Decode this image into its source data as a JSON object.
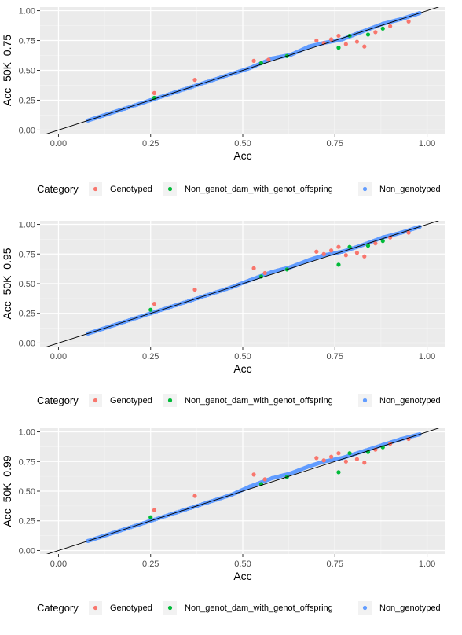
{
  "legend": {
    "title": "Category",
    "items": [
      {
        "label": "Genotyped",
        "color": "#F8766D"
      },
      {
        "label": "Non_genot_dam_with_genot_offspring",
        "color": "#00BA38"
      },
      {
        "label": "Non_genotyped",
        "color": "#619CFF"
      }
    ]
  },
  "chart_data": [
    {
      "type": "scatter",
      "xlabel": "Acc",
      "ylabel": "Acc_50K_0.75",
      "xlim": [
        -0.05,
        1.05
      ],
      "ylim": [
        -0.03,
        1.03
      ],
      "xticks": [
        "0.00",
        "0.25",
        "0.50",
        "0.75",
        "1.00"
      ],
      "yticks": [
        "0.00",
        "0.25",
        "0.50",
        "0.75",
        "1.00"
      ],
      "reference_line": {
        "slope": 1,
        "intercept": 0
      },
      "series": [
        {
          "name": "Non_genotyped",
          "points": [
            [
              0.08,
              0.08
            ],
            [
              0.12,
              0.12
            ],
            [
              0.18,
              0.18
            ],
            [
              0.25,
              0.25
            ],
            [
              0.32,
              0.32
            ],
            [
              0.4,
              0.4
            ],
            [
              0.47,
              0.47
            ],
            [
              0.52,
              0.52
            ],
            [
              0.58,
              0.6
            ],
            [
              0.63,
              0.63
            ],
            [
              0.68,
              0.7
            ],
            [
              0.72,
              0.73
            ],
            [
              0.77,
              0.76
            ],
            [
              0.82,
              0.82
            ],
            [
              0.88,
              0.89
            ],
            [
              0.93,
              0.93
            ],
            [
              0.98,
              0.98
            ]
          ]
        },
        {
          "name": "Genotyped",
          "points": [
            [
              0.26,
              0.31
            ],
            [
              0.37,
              0.42
            ],
            [
              0.53,
              0.58
            ],
            [
              0.57,
              0.59
            ],
            [
              0.7,
              0.75
            ],
            [
              0.72,
              0.73
            ],
            [
              0.74,
              0.76
            ],
            [
              0.76,
              0.79
            ],
            [
              0.78,
              0.72
            ],
            [
              0.81,
              0.74
            ],
            [
              0.83,
              0.7
            ],
            [
              0.86,
              0.82
            ],
            [
              0.9,
              0.87
            ],
            [
              0.95,
              0.91
            ]
          ]
        },
        {
          "name": "Non_genot_dam_with_genot_offspring",
          "points": [
            [
              0.26,
              0.27
            ],
            [
              0.55,
              0.56
            ],
            [
              0.62,
              0.62
            ],
            [
              0.76,
              0.69
            ],
            [
              0.79,
              0.79
            ],
            [
              0.84,
              0.8
            ],
            [
              0.88,
              0.85
            ]
          ]
        }
      ]
    },
    {
      "type": "scatter",
      "xlabel": "Acc",
      "ylabel": "Acc_50K_0.95",
      "xlim": [
        -0.05,
        1.05
      ],
      "ylim": [
        -0.03,
        1.03
      ],
      "xticks": [
        "0.00",
        "0.25",
        "0.50",
        "0.75",
        "1.00"
      ],
      "yticks": [
        "0.00",
        "0.25",
        "0.50",
        "0.75",
        "1.00"
      ],
      "reference_line": {
        "slope": 1,
        "intercept": 0
      },
      "series": [
        {
          "name": "Non_genotyped",
          "points": [
            [
              0.08,
              0.08
            ],
            [
              0.12,
              0.12
            ],
            [
              0.18,
              0.18
            ],
            [
              0.25,
              0.25
            ],
            [
              0.32,
              0.32
            ],
            [
              0.4,
              0.4
            ],
            [
              0.47,
              0.47
            ],
            [
              0.52,
              0.53
            ],
            [
              0.58,
              0.6
            ],
            [
              0.63,
              0.64
            ],
            [
              0.68,
              0.7
            ],
            [
              0.72,
              0.74
            ],
            [
              0.77,
              0.77
            ],
            [
              0.82,
              0.82
            ],
            [
              0.88,
              0.89
            ],
            [
              0.93,
              0.93
            ],
            [
              0.98,
              0.98
            ]
          ]
        },
        {
          "name": "Genotyped",
          "points": [
            [
              0.26,
              0.33
            ],
            [
              0.37,
              0.45
            ],
            [
              0.53,
              0.63
            ],
            [
              0.56,
              0.59
            ],
            [
              0.7,
              0.77
            ],
            [
              0.72,
              0.75
            ],
            [
              0.74,
              0.78
            ],
            [
              0.76,
              0.81
            ],
            [
              0.78,
              0.74
            ],
            [
              0.81,
              0.76
            ],
            [
              0.83,
              0.73
            ],
            [
              0.86,
              0.84
            ],
            [
              0.9,
              0.89
            ],
            [
              0.95,
              0.93
            ]
          ]
        },
        {
          "name": "Non_genot_dam_with_genot_offspring",
          "points": [
            [
              0.25,
              0.28
            ],
            [
              0.55,
              0.56
            ],
            [
              0.62,
              0.62
            ],
            [
              0.76,
              0.66
            ],
            [
              0.79,
              0.81
            ],
            [
              0.84,
              0.82
            ],
            [
              0.88,
              0.86
            ]
          ]
        }
      ]
    },
    {
      "type": "scatter",
      "xlabel": "Acc",
      "ylabel": "Acc_50K_0.99",
      "xlim": [
        -0.05,
        1.05
      ],
      "ylim": [
        -0.03,
        1.03
      ],
      "xticks": [
        "0.00",
        "0.25",
        "0.50",
        "0.75",
        "1.00"
      ],
      "yticks": [
        "0.00",
        "0.25",
        "0.50",
        "0.75",
        "1.00"
      ],
      "reference_line": {
        "slope": 1,
        "intercept": 0
      },
      "series": [
        {
          "name": "Non_genotyped",
          "points": [
            [
              0.08,
              0.08
            ],
            [
              0.12,
              0.12
            ],
            [
              0.18,
              0.18
            ],
            [
              0.25,
              0.25
            ],
            [
              0.32,
              0.32
            ],
            [
              0.4,
              0.4
            ],
            [
              0.47,
              0.47
            ],
            [
              0.52,
              0.54
            ],
            [
              0.58,
              0.61
            ],
            [
              0.63,
              0.65
            ],
            [
              0.68,
              0.71
            ],
            [
              0.72,
              0.75
            ],
            [
              0.77,
              0.78
            ],
            [
              0.82,
              0.83
            ],
            [
              0.88,
              0.89
            ],
            [
              0.93,
              0.94
            ],
            [
              0.98,
              0.98
            ]
          ]
        },
        {
          "name": "Genotyped",
          "points": [
            [
              0.26,
              0.34
            ],
            [
              0.37,
              0.46
            ],
            [
              0.53,
              0.64
            ],
            [
              0.56,
              0.6
            ],
            [
              0.7,
              0.78
            ],
            [
              0.72,
              0.76
            ],
            [
              0.74,
              0.79
            ],
            [
              0.76,
              0.82
            ],
            [
              0.78,
              0.75
            ],
            [
              0.81,
              0.77
            ],
            [
              0.83,
              0.74
            ],
            [
              0.86,
              0.85
            ],
            [
              0.9,
              0.9
            ],
            [
              0.95,
              0.94
            ]
          ]
        },
        {
          "name": "Non_genot_dam_with_genot_offspring",
          "points": [
            [
              0.25,
              0.28
            ],
            [
              0.55,
              0.56
            ],
            [
              0.62,
              0.62
            ],
            [
              0.76,
              0.66
            ],
            [
              0.79,
              0.82
            ],
            [
              0.84,
              0.83
            ],
            [
              0.88,
              0.87
            ]
          ]
        }
      ]
    }
  ]
}
